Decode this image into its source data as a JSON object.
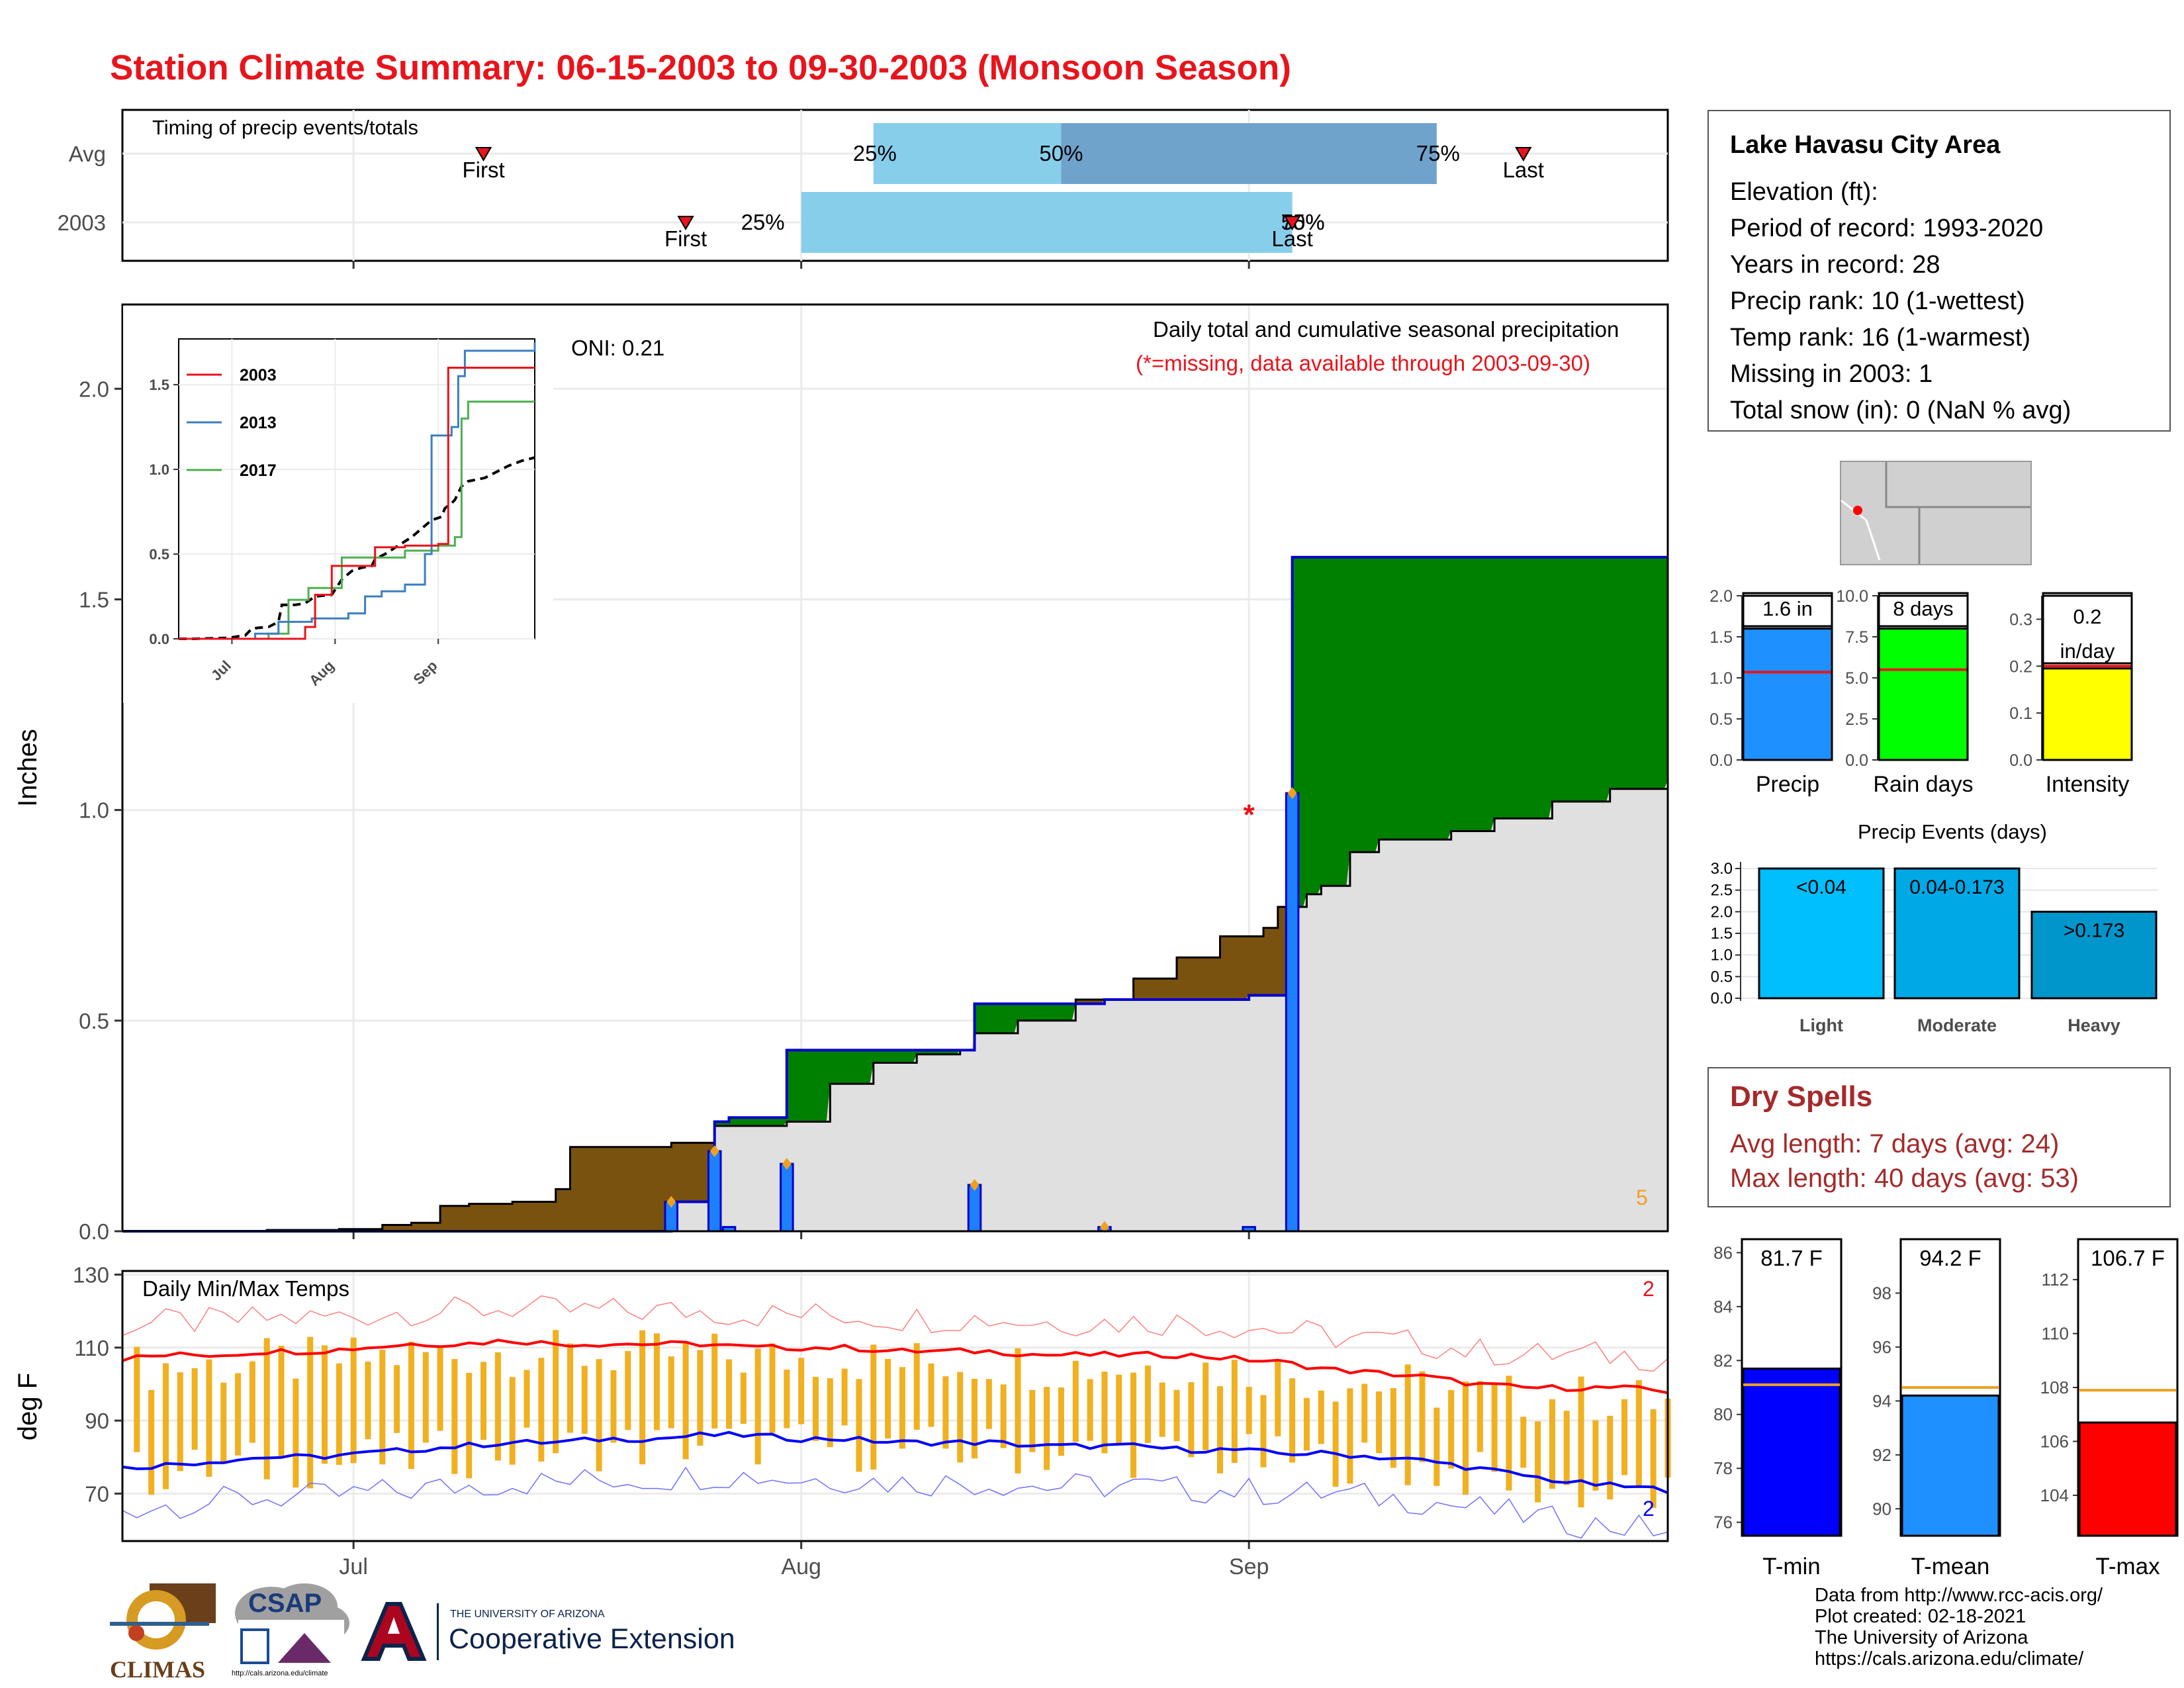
{
  "title": "Station Climate Summary: 06-15-2003 to 09-30-2003 (Monsoon Season)",
  "colors": {
    "title": "#e8141c",
    "cum_fill_2003": "#7a5210",
    "cum_fill_avg": "#e0e0e0",
    "cum_above_avg": "#008000",
    "daily_bar": "#1e7fff",
    "temp_range_bar": "#f0b020",
    "tmax_line": "#ff0000",
    "tmin_line": "#0000ff",
    "dry_spells": "#a52a2a"
  },
  "timing": {
    "title": "Timing of precip events/totals",
    "rows": [
      {
        "label": "Avg",
        "first_date": "2003-07-10",
        "last_date": "2003-09-20",
        "p25_date": "2003-08-06",
        "p50_date": "2003-08-19",
        "p75_date": "2003-09-14",
        "first_label": "First",
        "last_label": "Last",
        "p25_label": "25%",
        "p50_label": "50%",
        "p75_label": "75%"
      },
      {
        "label": "2003",
        "first_date": "2003-07-24",
        "last_date": "2003-09-04",
        "p25_date": "2003-08-01",
        "p50_date": "2003-09-04",
        "p75_date": "2003-09-04",
        "first_label": "First",
        "last_label": "Last",
        "p25_label": "25%",
        "p50_label": "50%",
        "p75_label": "75%"
      }
    ]
  },
  "main_panel": {
    "ylabel": "Inches",
    "subtitle": "Daily total and cumulative seasonal precipitation",
    "note": "(*=missing, data available through 2003-09-30)",
    "oni": "ONI: 0.21",
    "count_label": "5"
  },
  "inset": {
    "legend": [
      "2003",
      "2013",
      "2017"
    ],
    "colors": [
      "#e8141c",
      "#3a7fc0",
      "#4caf50"
    ],
    "xticks": [
      "Jul",
      "Aug",
      "Sep"
    ],
    "yticks": [
      "0.0",
      "0.5",
      "1.0",
      "1.5"
    ]
  },
  "temps": {
    "title": "Daily Min/Max Temps",
    "ylabel": "deg F",
    "count_top": "2",
    "count_bottom": "2"
  },
  "xaxis_labels": [
    "Jul",
    "Aug",
    "Sep"
  ],
  "station": {
    "name": "Lake Havasu City Area",
    "lines": [
      "Elevation (ft):",
      "Period of record: 1993-2020",
      "Years in record: 28",
      "Precip rank: 10 (1-wettest)",
      "Temp rank: 16 (1-warmest)",
      "Missing in 2003: 1",
      "Total snow (in): 0 (NaN % avg)"
    ]
  },
  "mini_bars": [
    {
      "label": "Precip",
      "value_label": "1.6 in",
      "value": 1.6,
      "avg": 1.07,
      "ymax": 2.0,
      "ticks": [
        "0.0",
        "0.5",
        "1.0",
        "1.5",
        "2.0"
      ],
      "color": "#1e90ff"
    },
    {
      "label": "Rain days",
      "value_label": "8 days",
      "value": 8,
      "avg": 5.5,
      "ymax": 10,
      "ticks": [
        "0.0",
        "2.5",
        "5.0",
        "7.5",
        "10.0"
      ],
      "color": "#00ff00"
    },
    {
      "label": "Intensity",
      "value_label": "0.2 in/day",
      "value_line1": "0.2",
      "value_line2": "in/day",
      "value": 0.195,
      "avg": 0.2,
      "ymax": 0.35,
      "ticks": [
        "0.0",
        "0.1",
        "0.2",
        "0.3"
      ],
      "color": "#ffff00"
    }
  ],
  "events": {
    "title": "Precip Events (days)",
    "ticks": [
      "0.0",
      "0.5",
      "1.0",
      "1.5",
      "2.0",
      "2.5",
      "3.0"
    ],
    "bars": [
      {
        "category": "Light",
        "range": "<0.04",
        "value": 3,
        "color": "#00bfff"
      },
      {
        "category": "Moderate",
        "range": "0.04-0.173",
        "value": 3,
        "color": "#00a8e6"
      },
      {
        "category": "Heavy",
        "range": ">0.173",
        "value": 2,
        "color": "#0096cc"
      }
    ]
  },
  "dry_spells": {
    "title": "Dry Spells",
    "avg_line": "Avg length: 7 days (avg: 24)",
    "max_line": "Max length: 40 days (avg: 53)"
  },
  "temp_bars": [
    {
      "label": "T-min",
      "value_label": "81.7 F",
      "value": 81.7,
      "avg": 81.1,
      "ymin": 75.5,
      "ymax": 86.5,
      "ticks": [
        "76",
        "78",
        "80",
        "82",
        "84",
        "86"
      ],
      "color": "#0000ff"
    },
    {
      "label": "T-mean",
      "value_label": "94.2 F",
      "value": 94.2,
      "avg": 94.5,
      "ymin": 89.0,
      "ymax": 100.0,
      "ticks": [
        "90",
        "92",
        "94",
        "96",
        "98"
      ],
      "color": "#1e90ff"
    },
    {
      "label": "T-max",
      "value_label": "106.7 F",
      "value": 106.7,
      "avg": 107.9,
      "ymin": 102.5,
      "ymax": 113.5,
      "ticks": [
        "104",
        "106",
        "108",
        "110",
        "112"
      ],
      "color": "#ff0000"
    }
  ],
  "footer": {
    "lines": [
      "Data from http://www.rcc-acis.org/",
      "Plot created: 02-18-2021",
      "The University of Arizona",
      "https://cals.arizona.edu/climate/"
    ]
  },
  "logos": {
    "climas": "CLIMAS",
    "csap": "CSAP",
    "csap_url": "http://cals.arizona.edu/climate",
    "ua_small": "THE UNIVERSITY OF ARIZONA",
    "ua_big": "Cooperative Extension"
  },
  "chart_data": {
    "type": "area",
    "title": "Daily total and cumulative seasonal precipitation",
    "ylabel": "Inches",
    "ylim": [
      0,
      2.2
    ],
    "xlim": [
      "2003-06-15",
      "2003-09-30"
    ],
    "xticks": [
      "Jul",
      "Aug",
      "Sep"
    ],
    "yticks": [
      0.0,
      0.5,
      1.0,
      1.5,
      2.0
    ],
    "daily_precip": [
      {
        "date": "2003-07-23",
        "value": 0.07
      },
      {
        "date": "2003-07-26",
        "value": 0.19
      },
      {
        "date": "2003-07-27",
        "value": 0.01
      },
      {
        "date": "2003-07-31",
        "value": 0.16
      },
      {
        "date": "2003-08-13",
        "value": 0.11
      },
      {
        "date": "2003-08-22",
        "value": 0.01
      },
      {
        "date": "2003-09-01",
        "value": 0.01
      },
      {
        "date": "2003-09-04",
        "value": 1.04
      }
    ],
    "missing": [
      {
        "date": "2003-09-01",
        "value": 1.0
      }
    ],
    "cumulative_2003": [
      {
        "date": "2003-06-15",
        "value": 0.0
      },
      {
        "date": "2003-07-22",
        "value": 0.0
      },
      {
        "date": "2003-07-23",
        "value": 0.07
      },
      {
        "date": "2003-07-26",
        "value": 0.26
      },
      {
        "date": "2003-07-27",
        "value": 0.27
      },
      {
        "date": "2003-07-31",
        "value": 0.43
      },
      {
        "date": "2003-08-13",
        "value": 0.54
      },
      {
        "date": "2003-08-22",
        "value": 0.55
      },
      {
        "date": "2003-09-01",
        "value": 0.56
      },
      {
        "date": "2003-09-04",
        "value": 1.6
      },
      {
        "date": "2003-09-30",
        "value": 1.6
      }
    ],
    "cumulative_avg": [
      {
        "date": "2003-06-15",
        "value": 0.0
      },
      {
        "date": "2003-06-20",
        "value": 0.0
      },
      {
        "date": "2003-06-25",
        "value": 0.003
      },
      {
        "date": "2003-06-30",
        "value": 0.005
      },
      {
        "date": "2003-07-03",
        "value": 0.015
      },
      {
        "date": "2003-07-05",
        "value": 0.02
      },
      {
        "date": "2003-07-07",
        "value": 0.06
      },
      {
        "date": "2003-07-09",
        "value": 0.065
      },
      {
        "date": "2003-07-12",
        "value": 0.07
      },
      {
        "date": "2003-07-15",
        "value": 0.1
      },
      {
        "date": "2003-07-16",
        "value": 0.2
      },
      {
        "date": "2003-07-20",
        "value": 0.2
      },
      {
        "date": "2003-07-23",
        "value": 0.21
      },
      {
        "date": "2003-07-26",
        "value": 0.25
      },
      {
        "date": "2003-07-31",
        "value": 0.26
      },
      {
        "date": "2003-08-03",
        "value": 0.35
      },
      {
        "date": "2003-08-06",
        "value": 0.4
      },
      {
        "date": "2003-08-09",
        "value": 0.42
      },
      {
        "date": "2003-08-12",
        "value": 0.43
      },
      {
        "date": "2003-08-13",
        "value": 0.47
      },
      {
        "date": "2003-08-16",
        "value": 0.5
      },
      {
        "date": "2003-08-20",
        "value": 0.55
      },
      {
        "date": "2003-08-24",
        "value": 0.6
      },
      {
        "date": "2003-08-27",
        "value": 0.65
      },
      {
        "date": "2003-08-30",
        "value": 0.7
      },
      {
        "date": "2003-09-02",
        "value": 0.72
      },
      {
        "date": "2003-09-03",
        "value": 0.77
      },
      {
        "date": "2003-09-05",
        "value": 0.8
      },
      {
        "date": "2003-09-06",
        "value": 0.82
      },
      {
        "date": "2003-09-08",
        "value": 0.9
      },
      {
        "date": "2003-09-10",
        "value": 0.93
      },
      {
        "date": "2003-09-15",
        "value": 0.95
      },
      {
        "date": "2003-09-18",
        "value": 0.98
      },
      {
        "date": "2003-09-22",
        "value": 1.02
      },
      {
        "date": "2003-09-26",
        "value": 1.05
      },
      {
        "date": "2003-09-30",
        "value": 1.07
      }
    ],
    "inset_series": [
      {
        "name": "2003",
        "points": [
          [
            "2003-06-15",
            0
          ],
          [
            "2003-07-23",
            0.07
          ],
          [
            "2003-07-26",
            0.26
          ],
          [
            "2003-07-31",
            0.43
          ],
          [
            "2003-08-13",
            0.54
          ],
          [
            "2003-08-22",
            0.55
          ],
          [
            "2003-09-01",
            0.56
          ],
          [
            "2003-09-04",
            1.6
          ],
          [
            "2003-09-30",
            1.6
          ]
        ]
      },
      {
        "name": "2013",
        "points": [
          [
            "2003-06-15",
            0
          ],
          [
            "2003-07-08",
            0.03
          ],
          [
            "2003-07-15",
            0.1
          ],
          [
            "2003-07-25",
            0.12
          ],
          [
            "2003-08-05",
            0.15
          ],
          [
            "2003-08-10",
            0.25
          ],
          [
            "2003-08-15",
            0.28
          ],
          [
            "2003-08-22",
            0.32
          ],
          [
            "2003-08-28",
            0.5
          ],
          [
            "2003-08-30",
            1.2
          ],
          [
            "2003-09-05",
            1.25
          ],
          [
            "2003-09-07",
            1.55
          ],
          [
            "2003-09-09",
            1.7
          ],
          [
            "2003-09-30",
            1.75
          ]
        ]
      },
      {
        "name": "2017",
        "points": [
          [
            "2003-06-15",
            0
          ],
          [
            "2003-07-12",
            0.03
          ],
          [
            "2003-07-18",
            0.23
          ],
          [
            "2003-07-24",
            0.3
          ],
          [
            "2003-08-03",
            0.48
          ],
          [
            "2003-08-22",
            0.52
          ],
          [
            "2003-09-01",
            0.55
          ],
          [
            "2003-09-06",
            0.6
          ],
          [
            "2003-09-08",
            1.3
          ],
          [
            "2003-09-10",
            1.4
          ],
          [
            "2003-09-30",
            1.4
          ]
        ]
      }
    ],
    "temps": {
      "type": "line",
      "ylim": [
        57,
        131
      ],
      "yticks": [
        70,
        90,
        110,
        130
      ],
      "tmax_avg": [
        107,
        108,
        108,
        109,
        109,
        110,
        111,
        111,
        112,
        111,
        111,
        111,
        111,
        110,
        110,
        110,
        109,
        109,
        109,
        108,
        108,
        108,
        108,
        107,
        106,
        104,
        103,
        102,
        100,
        99,
        99,
        99,
        98
      ],
      "tmin_avg": [
        77,
        78,
        79,
        80,
        80,
        81,
        82,
        83,
        84,
        84,
        85,
        85,
        86,
        86,
        85,
        85,
        84,
        84,
        84,
        83,
        83,
        83,
        82,
        82,
        81,
        81,
        80,
        79,
        77,
        75,
        73,
        72,
        71
      ],
      "bars_note": "daily observed min-max range"
    }
  }
}
